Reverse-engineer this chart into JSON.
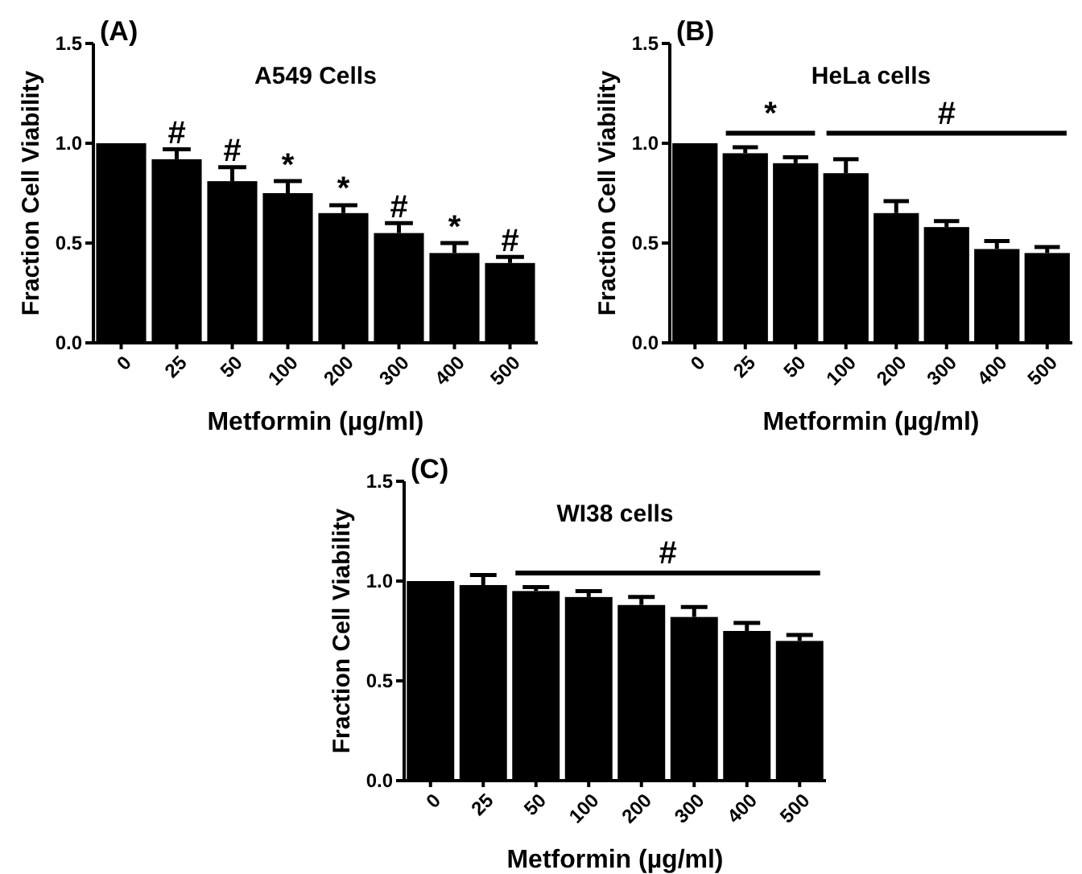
{
  "chart_data": [
    {
      "type": "bar",
      "title": "A549 Cells",
      "xlabel": "Metformin (µg/ml)",
      "ylabel": "Fraction Cell Viability",
      "categories": [
        "0",
        "25",
        "50",
        "100",
        "200",
        "300",
        "400",
        "500"
      ],
      "values": [
        1.0,
        0.92,
        0.81,
        0.75,
        0.65,
        0.55,
        0.45,
        0.4
      ],
      "color": "#000000",
      "errors": [
        null,
        [
          0.92,
          0.97
        ],
        [
          0.81,
          0.88
        ],
        [
          0.75,
          0.81
        ],
        [
          0.65,
          0.69
        ],
        [
          0.55,
          0.6
        ],
        [
          0.45,
          0.5
        ],
        [
          0.4,
          0.43
        ]
      ],
      "ylim": [
        0,
        1.5
      ],
      "yticks": [
        {
          "value": 0,
          "label": "0.0"
        },
        {
          "value": 0.5,
          "label": "0.5"
        },
        {
          "value": 1,
          "label": "1.0"
        },
        {
          "value": 1.5,
          "label": "1.5"
        }
      ],
      "annotations": [
        "(A)",
        {
          "text": "#",
          "x": "25",
          "y": 1.0
        },
        {
          "text": "#",
          "x": "50",
          "y": 0.91
        },
        {
          "text": "*",
          "x": "100",
          "y": 0.84
        },
        {
          "text": "*",
          "x": "200",
          "y": 0.72
        },
        {
          "text": "#",
          "x": "300",
          "y": 0.63
        },
        {
          "text": "*",
          "x": "400",
          "y": 0.53
        },
        {
          "text": "#",
          "x": "500",
          "y": 0.46
        }
      ]
    },
    {
      "type": "bar",
      "title": "HeLa cells",
      "xlabel": "Metformin (µg/ml)",
      "ylabel": "Fraction Cell Viability",
      "categories": [
        "0",
        "25",
        "50",
        "100",
        "200",
        "300",
        "400",
        "500"
      ],
      "values": [
        1.0,
        0.95,
        0.9,
        0.85,
        0.65,
        0.58,
        0.47,
        0.45
      ],
      "color": "#000000",
      "errors": [
        null,
        [
          0.95,
          0.98
        ],
        [
          0.9,
          0.93
        ],
        [
          0.85,
          0.92
        ],
        [
          0.65,
          0.71
        ],
        [
          0.58,
          0.61
        ],
        [
          0.47,
          0.51
        ],
        [
          0.45,
          0.48
        ]
      ],
      "ylim": [
        0,
        1.5
      ],
      "yticks": [
        {
          "value": 0,
          "label": "0.0"
        },
        {
          "value": 0.5,
          "label": "0.5"
        },
        {
          "value": 1,
          "label": "1.0"
        },
        {
          "value": 1.5,
          "label": "1.5"
        }
      ],
      "annotations": [
        "(B)",
        "*",
        "#"
      ]
    },
    {
      "type": "bar",
      "title": "WI38 cells",
      "xlabel": "Metformin (µg/ml)",
      "ylabel": "Fraction Cell Viability",
      "categories": [
        "0",
        "25",
        "50",
        "100",
        "200",
        "300",
        "400",
        "500"
      ],
      "values": [
        1.0,
        0.98,
        0.95,
        0.92,
        0.88,
        0.82,
        0.75,
        0.7
      ],
      "color": "#000000",
      "errors": [
        null,
        [
          0.98,
          1.03
        ],
        [
          0.95,
          0.97
        ],
        [
          0.92,
          0.95
        ],
        [
          0.88,
          0.92
        ],
        [
          0.82,
          0.87
        ],
        [
          0.75,
          0.79
        ],
        [
          0.7,
          0.73
        ]
      ],
      "ylim": [
        0,
        1.5
      ],
      "yticks": [
        {
          "value": 0,
          "label": "0.0"
        },
        {
          "value": 0.5,
          "label": "0.5"
        },
        {
          "value": 1,
          "label": "1.0"
        },
        {
          "value": 1.5,
          "label": "1.5"
        }
      ],
      "annotations": [
        "(C)",
        "#"
      ]
    }
  ]
}
